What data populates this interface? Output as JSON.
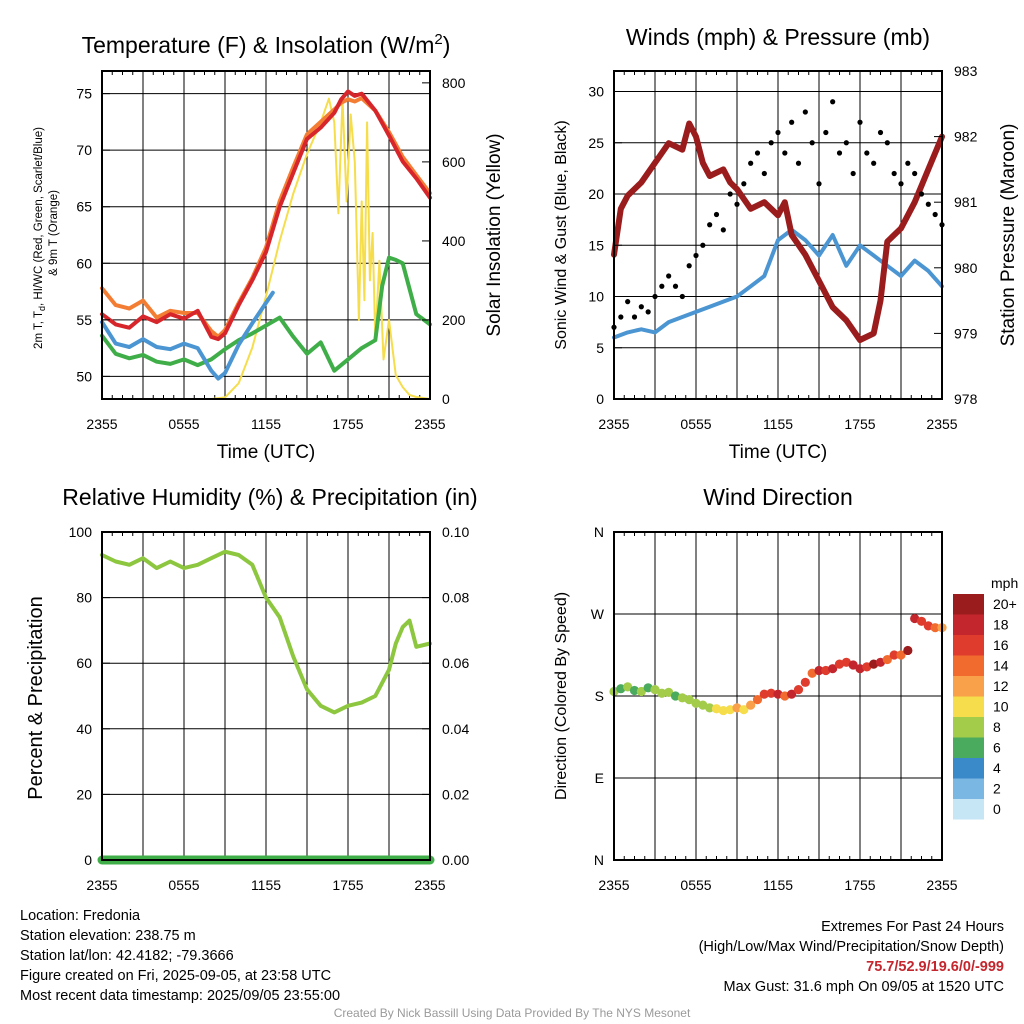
{
  "chart_data": [
    {
      "type": "line",
      "title": "Temperature (F) & Insolation (W/m",
      "title_sup": "2",
      "title_close": ")",
      "xlabel": "Time (UTC)",
      "ylabel_lines": [
        "2m T, T",
        "d",
        ", HI/WC (Red, Green, Scarlet/Blue)",
        "& 9m T (Orange)"
      ],
      "ylabel_right": "Solar Insolation (Yellow)",
      "xticks": [
        "2355",
        "0555",
        "1155",
        "1755",
        "2355"
      ],
      "ylim": [
        48,
        77
      ],
      "yticks": [
        50,
        55,
        60,
        65,
        70,
        75
      ],
      "ylim_right": [
        0,
        830
      ],
      "yticks_right": [
        0,
        200,
        400,
        600,
        800
      ],
      "x_range_hours": [
        0,
        24
      ],
      "series": [
        {
          "name": "2m T",
          "color": "#d7262b",
          "x": [
            0,
            1,
            2,
            3,
            4,
            5,
            6,
            7,
            8,
            8.5,
            9,
            10,
            11,
            12,
            13,
            14,
            15,
            16,
            17,
            17.5,
            18,
            18.5,
            19,
            20,
            21,
            22,
            23,
            24
          ],
          "y": [
            55.5,
            54.6,
            54.3,
            55.3,
            54.8,
            55.5,
            55.1,
            55.8,
            53.5,
            53.3,
            53.8,
            56.3,
            58.5,
            61,
            65,
            68,
            71,
            72,
            73.3,
            74.5,
            75.2,
            74.8,
            75,
            73.5,
            71.3,
            69,
            67.5,
            65.8
          ]
        },
        {
          "name": "9m T",
          "color": "#f47d34",
          "x": [
            0,
            1,
            2,
            3,
            4,
            5,
            6,
            7,
            8,
            8.5,
            9,
            10,
            11,
            12,
            13,
            14,
            15,
            16,
            17,
            17.5,
            18,
            18.5,
            19,
            20,
            21,
            22,
            23,
            24
          ],
          "y": [
            57.8,
            56.3,
            56,
            56.7,
            55.2,
            55.8,
            55.6,
            55.6,
            54,
            53.5,
            54.1,
            56.5,
            58.7,
            61.4,
            65.5,
            68.5,
            71.4,
            72.5,
            73.6,
            74.2,
            74.5,
            74.3,
            74.6,
            73.5,
            71.6,
            69.4,
            67.8,
            66.2
          ]
        },
        {
          "name": "Td",
          "color": "#3fae49",
          "x": [
            0,
            1,
            2,
            3,
            4,
            5,
            6,
            7,
            8,
            9,
            10,
            11,
            12,
            13,
            14,
            15,
            16,
            17,
            18,
            19,
            20,
            20.5,
            21,
            21.5,
            22,
            23,
            24
          ],
          "y": [
            53.6,
            52,
            51.6,
            51.9,
            51.3,
            51.1,
            51.5,
            51,
            51.5,
            52.4,
            53.2,
            53.8,
            54.5,
            55.2,
            53.5,
            52,
            53,
            50.5,
            51.5,
            52.5,
            53.2,
            58,
            60.5,
            60.3,
            60,
            55.5,
            54.6
          ]
        },
        {
          "name": "HI/WC",
          "color": "#4b96d2",
          "x": [
            0,
            1,
            2,
            3,
            4,
            5,
            6,
            7,
            8,
            8.5,
            9,
            10,
            11,
            12.5
          ],
          "y": [
            54.8,
            52.9,
            52.6,
            53.3,
            52.6,
            52.4,
            52.9,
            52.5,
            50.5,
            49.8,
            50.3,
            52.8,
            54.7,
            57.4
          ]
        },
        {
          "name": "Solar Insolation",
          "color": "#f6dd4b",
          "axis": "right",
          "x": [
            0,
            8,
            9,
            10,
            11,
            12,
            13,
            14,
            15,
            16,
            16.6,
            17,
            17.3,
            17.6,
            17.9,
            18.2,
            18.5,
            18.8,
            19,
            19.2,
            19.4,
            19.6,
            19.8,
            20,
            20.3,
            20.6,
            21,
            21.5,
            22,
            22.5,
            23,
            24
          ],
          "y": [
            0,
            0,
            4,
            40,
            130,
            260,
            400,
            520,
            620,
            700,
            760,
            700,
            470,
            760,
            500,
            720,
            600,
            200,
            500,
            250,
            700,
            300,
            420,
            150,
            350,
            100,
            200,
            60,
            30,
            10,
            5,
            0
          ]
        }
      ]
    },
    {
      "type": "scatter",
      "title": "Winds (mph) & Pressure (mb)",
      "xlabel": "Time (UTC)",
      "ylabel": "Sonic Wind & Gust (Blue, Black)",
      "ylabel_right": "Station Pressure (Maroon)",
      "xticks": [
        "2355",
        "0555",
        "1155",
        "1755",
        "2355"
      ],
      "ylim": [
        0,
        32
      ],
      "yticks": [
        0,
        5,
        10,
        15,
        20,
        25,
        30
      ],
      "ylim_right": [
        978,
        983
      ],
      "yticks_right": [
        978,
        979,
        980,
        981,
        982,
        983
      ],
      "x_range_hours": [
        0,
        24
      ],
      "series": [
        {
          "name": "Sonic Wind",
          "color": "#4b96d2",
          "x": [
            0,
            1,
            2,
            3,
            4,
            5,
            6,
            7,
            8,
            9,
            10,
            11,
            12,
            13,
            14,
            15,
            16,
            17,
            18,
            19,
            20,
            21,
            22,
            23,
            24
          ],
          "y": [
            6,
            6.5,
            6.8,
            6.5,
            7.5,
            8,
            8.5,
            9,
            9.5,
            10,
            11,
            12,
            15.5,
            16.5,
            15.5,
            14,
            16,
            13,
            15,
            14,
            13,
            12,
            13.5,
            12.5,
            11
          ]
        },
        {
          "name": "Gust",
          "color": "#000000",
          "x": [
            0,
            0.5,
            1,
            1.5,
            2,
            2.5,
            3,
            3.5,
            4,
            4.5,
            5,
            5.5,
            6,
            6.5,
            7,
            7.5,
            8,
            8.5,
            9,
            9.5,
            10,
            10.5,
            11,
            11.5,
            12,
            12.5,
            13,
            13.5,
            14,
            14.5,
            15,
            15.5,
            16,
            16.5,
            17,
            17.5,
            18,
            18.5,
            19,
            19.5,
            20,
            20.5,
            21,
            21.5,
            22,
            22.5,
            23,
            23.5,
            24
          ],
          "y": [
            7,
            8,
            9.5,
            8,
            9,
            8.5,
            10,
            11,
            12,
            11,
            10,
            13,
            14,
            15,
            17,
            18,
            16.5,
            20,
            19,
            21,
            23,
            24,
            22,
            25,
            26,
            24,
            27,
            23,
            28,
            25,
            21,
            26,
            29,
            24,
            25,
            22,
            27,
            24,
            23,
            26,
            25,
            22,
            21,
            23,
            22,
            20,
            19,
            18,
            17
          ]
        },
        {
          "name": "Station Pressure",
          "color": "#9b1c1c",
          "axis": "right",
          "x": [
            0,
            0.5,
            1,
            2,
            3,
            4,
            5,
            5.5,
            6,
            6.5,
            7,
            8,
            8.5,
            9,
            10,
            11,
            12,
            12.5,
            13,
            14,
            15,
            16,
            17,
            18,
            19,
            19.5,
            20,
            21,
            22,
            23,
            24
          ],
          "y": [
            980.2,
            980.9,
            981.1,
            981.3,
            981.6,
            981.9,
            981.8,
            982.2,
            982.0,
            981.6,
            981.4,
            981.5,
            981.3,
            981.2,
            980.9,
            981.0,
            980.8,
            981.0,
            980.5,
            980.2,
            979.8,
            979.4,
            979.2,
            978.9,
            979.0,
            979.5,
            980.4,
            980.6,
            981.0,
            981.5,
            982.0
          ]
        }
      ]
    },
    {
      "type": "line",
      "title": "Relative Humidity (%) & Precipitation (in)",
      "ylabel": "Percent & Precipitation",
      "xticks": [
        "2355",
        "0555",
        "1155",
        "1755",
        "2355"
      ],
      "ylim": [
        0,
        100
      ],
      "yticks": [
        0,
        20,
        40,
        60,
        80,
        100
      ],
      "ylim_right": [
        0,
        0.1
      ],
      "yticks_right": [
        "0.00",
        "0.02",
        "0.04",
        "0.06",
        "0.08",
        "0.10"
      ],
      "x_range_hours": [
        0,
        24
      ],
      "series": [
        {
          "name": "Relative Humidity",
          "color": "#8dc63f",
          "x": [
            0,
            1,
            2,
            3,
            4,
            5,
            6,
            7,
            8,
            9,
            10,
            11,
            12,
            13,
            14,
            15,
            16,
            17,
            18,
            19,
            20,
            21,
            21.5,
            22,
            22.5,
            23,
            24
          ],
          "y": [
            93,
            91,
            90,
            92,
            89,
            91,
            89,
            90,
            92,
            94,
            93,
            90,
            80,
            74,
            62,
            52,
            47,
            45,
            47,
            48,
            50,
            58,
            66,
            71,
            73,
            65,
            66
          ]
        },
        {
          "name": "Precipitation",
          "color": "#3fae49",
          "x": [
            0,
            24
          ],
          "y": [
            0,
            0
          ]
        }
      ]
    },
    {
      "type": "scatter",
      "title": "Wind Direction",
      "ylabel": "Direction (Colored By Speed)",
      "xticks": [
        "2355",
        "0555",
        "1155",
        "1755",
        "2355"
      ],
      "ylim": [
        0,
        360
      ],
      "ytick_labels": [
        "N",
        "E",
        "S",
        "W",
        "N"
      ],
      "yticks": [
        0,
        90,
        180,
        270,
        360
      ],
      "x_range_hours": [
        0,
        24
      ],
      "colorbar": {
        "unit": "mph",
        "labels": [
          "20+",
          "18",
          "16",
          "14",
          "12",
          "10",
          "8",
          "6",
          "4",
          "2",
          "0"
        ],
        "colors": [
          "#9b1c1c",
          "#c4262e",
          "#e03c2e",
          "#f26b2e",
          "#f8a04a",
          "#f6dd4b",
          "#a3cc4a",
          "#4aaa5e",
          "#3a89c9",
          "#7ab8e3",
          "#c6e6f6"
        ]
      },
      "series": [
        {
          "name": "direction",
          "x": [
            0,
            0.5,
            1,
            1.5,
            2,
            2.5,
            3,
            3.5,
            4,
            4.5,
            5,
            5.5,
            6,
            6.5,
            7,
            7.5,
            8,
            8.5,
            9,
            9.5,
            10,
            10.5,
            11,
            11.5,
            12,
            12.5,
            13,
            13.5,
            14,
            14.5,
            15,
            15.5,
            16,
            16.5,
            17,
            17.5,
            18,
            18.5,
            19,
            19.5,
            20,
            20.5,
            21,
            21.5,
            22,
            22.5,
            23,
            23.5,
            24
          ],
          "y": [
            185,
            188,
            190,
            186,
            185,
            189,
            187,
            183,
            184,
            180,
            178,
            176,
            172,
            170,
            167,
            166,
            164,
            165,
            167,
            165,
            170,
            176,
            182,
            183,
            182,
            180,
            182,
            187,
            195,
            205,
            208,
            208,
            210,
            215,
            217,
            214,
            210,
            212,
            215,
            217,
            220,
            225,
            225,
            230,
            265,
            262,
            257,
            255,
            255
          ],
          "speed": [
            7,
            6,
            7,
            6,
            7,
            6,
            7,
            7,
            8,
            6,
            8,
            7,
            8,
            7,
            8,
            10,
            9,
            10,
            11,
            10,
            12,
            13,
            16,
            15,
            17,
            14,
            18,
            16,
            16,
            14,
            17,
            16,
            18,
            16,
            15,
            17,
            18,
            16,
            19,
            17,
            14,
            16,
            13,
            20,
            18,
            16,
            15,
            14,
            12
          ]
        }
      ]
    }
  ],
  "info": {
    "location": "Location: Fredonia",
    "elevation": "Station elevation: 238.75 m",
    "latlon": "Station lat/lon: 42.4182; -79.3666",
    "created": "Figure created on Fri, 2025-09-05, at 23:58 UTC",
    "recent": "Most recent data timestamp: 2025/09/05 23:55:00"
  },
  "extremes": {
    "title": "Extremes For Past 24 Hours",
    "subtitle": "(High/Low/Max Wind/Precipitation/Snow Depth)",
    "values": "75.7/52.9/19.6/0/-999",
    "gust": "Max Gust: 31.6 mph On 09/05 at 1520 UTC"
  },
  "credit": "Created By Nick Bassill Using Data Provided By The NYS Mesonet"
}
